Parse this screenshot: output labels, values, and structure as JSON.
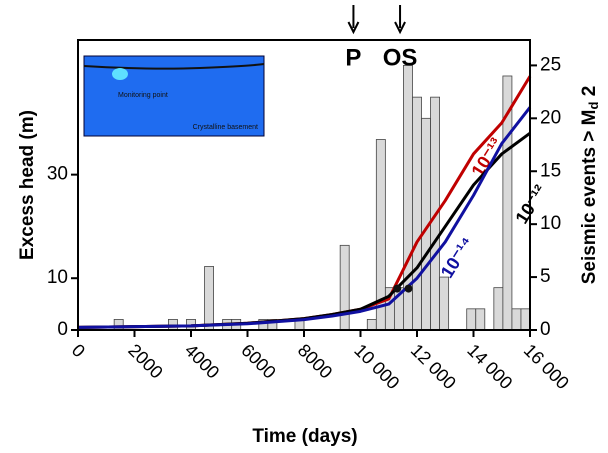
{
  "chart_data": {
    "type": "histogram",
    "xlabel": "Time (days)",
    "ylabel": "Excess head (m)",
    "y2label_parts": [
      "Seismic events > M",
      "d",
      " 2"
    ],
    "xlim": [
      0,
      16000
    ],
    "xticks": [
      0,
      2000,
      4000,
      6000,
      8000,
      {
        "value": 10000,
        "label": "10 000"
      },
      {
        "value": 12000,
        "label": "12 000"
      },
      {
        "value": 14000,
        "label": "14 000"
      },
      {
        "value": 16000,
        "label": "16 000"
      }
    ],
    "ylim": [
      0,
      56
    ],
    "yticks": [
      0,
      10,
      30
    ],
    "y2lim": [
      0,
      27.4
    ],
    "y2ticks": [
      0,
      5,
      10,
      15,
      20,
      25
    ],
    "bins": [
      0,
      320,
      640,
      960,
      1280,
      1600,
      1920,
      2240,
      2560,
      2880,
      3200,
      3520,
      3840,
      4160,
      4480,
      4800,
      5120,
      5440,
      5760,
      6080,
      6400,
      6720,
      7040,
      7360,
      7680,
      8000,
      8320,
      8640,
      8960,
      9280,
      9600,
      9920,
      10240,
      10560,
      10880,
      11200,
      11520,
      11840,
      12160,
      12480,
      12800,
      13120,
      13440,
      13760,
      14080,
      14400,
      14720,
      15040,
      15360,
      15680,
      16000
    ],
    "values": [
      0,
      0,
      0,
      0,
      1,
      0,
      0,
      0,
      0,
      0,
      1,
      0,
      1,
      0,
      6,
      0,
      1,
      1,
      0,
      0,
      1,
      1,
      0,
      0,
      1,
      0,
      0,
      0,
      0,
      8,
      0,
      0,
      1,
      18,
      4,
      4,
      25,
      22,
      20,
      22,
      5,
      0,
      0,
      2,
      2,
      0,
      4,
      24,
      2,
      2
    ],
    "axis": "y2",
    "color": "#d9d9d9",
    "lines": [
      {
        "name": "10⁻¹³",
        "color": "#c00000",
        "x": [
          0,
          4000,
          6000,
          8000,
          9000,
          10000,
          11000,
          12000,
          13000,
          14000,
          15000,
          16000
        ],
        "values": [
          0.5,
          0.8,
          1.3,
          2.2,
          3,
          4,
          6,
          17,
          25,
          34,
          40,
          49
        ]
      },
      {
        "name": "10⁻¹²",
        "color": "#000000",
        "x": [
          0,
          4000,
          6000,
          8000,
          9000,
          10000,
          11000,
          12000,
          13000,
          14000,
          15000,
          16000
        ],
        "values": [
          0.5,
          0.8,
          1.3,
          2.2,
          3,
          4,
          6.5,
          12,
          20,
          28,
          34,
          38
        ]
      },
      {
        "name": "10⁻¹⁴",
        "color": "#1010a0",
        "x": [
          0,
          4000,
          6000,
          8000,
          9000,
          10000,
          11000,
          12000,
          13000,
          14000,
          15000,
          16000
        ],
        "values": [
          0.5,
          0.8,
          1.2,
          2,
          2.7,
          3.6,
          5,
          10,
          17,
          26,
          36,
          43
        ]
      }
    ],
    "points": {
      "x": [
        11300,
        11700
      ],
      "values": [
        8,
        8
      ]
    },
    "annotations": [
      {
        "text": "P",
        "x": 9750
      },
      {
        "text": "OS",
        "x": 11400
      }
    ],
    "inset": {
      "labels": [
        "Monitoring point",
        "Crystalline basement"
      ]
    }
  }
}
